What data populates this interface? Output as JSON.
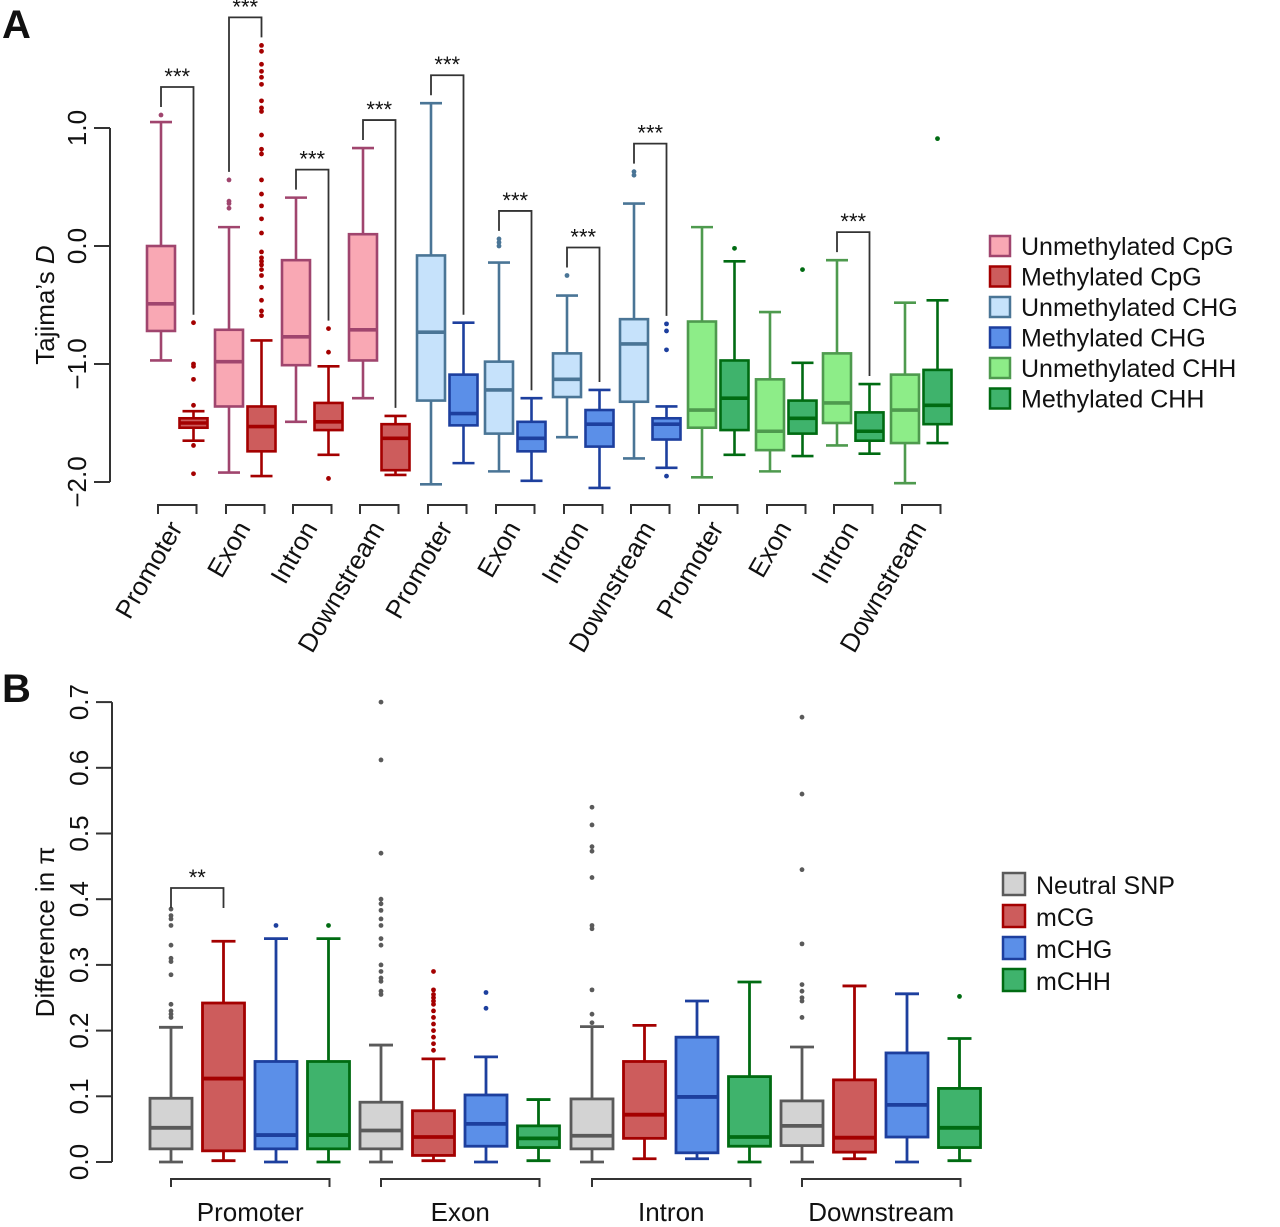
{
  "chart_data": [
    {
      "panel": "A",
      "type": "boxplot",
      "ylabel": "Tajima's D",
      "ylabel_parts": [
        "Tajima’s ",
        "D"
      ],
      "ylim": [
        -2.0,
        1.2
      ],
      "yticks": [
        -2.0,
        -1.0,
        0.0,
        1.0
      ],
      "ytick_labels": [
        "−2.0",
        "−1.0",
        "0.0",
        "1.0"
      ],
      "grid": false,
      "legend_position": "right",
      "categories": [
        "Promoter",
        "Exon",
        "Intron",
        "Downstream",
        "Promoter",
        "Exon",
        "Intron",
        "Downstream",
        "Promoter",
        "Exon",
        "Intron",
        "Downstream"
      ],
      "groups": [
        "CpG",
        "CpG",
        "CpG",
        "CpG",
        "CHG",
        "CHG",
        "CHG",
        "CHG",
        "CHH",
        "CHH",
        "CHH",
        "CHH"
      ],
      "series": [
        {
          "name": "Unmethylated CpG",
          "fill": "#f9a8b4",
          "stroke": "#a0456e",
          "boxes": [
            {
              "whislo": -0.97,
              "q1": -0.72,
              "med": -0.49,
              "q3": 0.0,
              "whishi": 1.05,
              "fliers": [
                1.11
              ]
            },
            {
              "whislo": -1.92,
              "q1": -1.36,
              "med": -0.98,
              "q3": -0.71,
              "whishi": 0.16,
              "fliers": [
                0.32,
                0.36,
                0.38,
                0.56
              ]
            },
            {
              "whislo": -1.49,
              "q1": -1.01,
              "med": -0.77,
              "q3": -0.12,
              "whishi": 0.41,
              "fliers": []
            },
            {
              "whislo": -1.29,
              "q1": -0.97,
              "med": -0.71,
              "q3": 0.1,
              "whishi": 0.83,
              "fliers": []
            }
          ]
        },
        {
          "name": "Methylated CpG",
          "fill": "#cd5c5c",
          "stroke": "#a40000",
          "boxes": [
            {
              "whislo": -1.65,
              "q1": -1.54,
              "med": -1.5,
              "q3": -1.46,
              "whishi": -1.4,
              "fliers": [
                -0.65,
                -1.0,
                -1.02,
                -1.13,
                -1.35,
                -1.69,
                -1.93
              ]
            },
            {
              "whislo": -1.95,
              "q1": -1.74,
              "med": -1.53,
              "q3": -1.36,
              "whishi": -0.8,
              "fliers": [
                1.7,
                1.65,
                1.54,
                1.48,
                1.43,
                1.37,
                1.23,
                1.17,
                1.14,
                0.94,
                0.82,
                0.78,
                0.56,
                0.44,
                0.34,
                0.23,
                0.11,
                -0.05,
                -0.1,
                -0.13,
                -0.16,
                -0.2,
                -0.25,
                -0.35,
                -0.46,
                -0.55,
                -0.59
              ]
            },
            {
              "whislo": -1.77,
              "q1": -1.56,
              "med": -1.49,
              "q3": -1.33,
              "whishi": -1.02,
              "fliers": [
                -0.7,
                -0.9,
                -1.97
              ]
            },
            {
              "whislo": -1.94,
              "q1": -1.9,
              "med": -1.63,
              "q3": -1.51,
              "whishi": -1.44,
              "fliers": []
            }
          ]
        },
        {
          "name": "Unmethylated CHG",
          "fill": "#c6e2fb",
          "stroke": "#4a7596",
          "boxes": [
            {
              "whislo": -2.02,
              "q1": -1.31,
              "med": -0.73,
              "q3": -0.08,
              "whishi": 1.21,
              "fliers": []
            },
            {
              "whislo": -1.91,
              "q1": -1.59,
              "med": -1.22,
              "q3": -0.98,
              "whishi": -0.14,
              "fliers": [
                0.0,
                0.03,
                0.06
              ]
            },
            {
              "whislo": -1.62,
              "q1": -1.28,
              "med": -1.13,
              "q3": -0.91,
              "whishi": -0.42,
              "fliers": [
                -0.25
              ]
            },
            {
              "whislo": -1.8,
              "q1": -1.32,
              "med": -0.83,
              "q3": -0.62,
              "whishi": 0.36,
              "fliers": [
                0.6,
                0.63
              ]
            }
          ]
        },
        {
          "name": "Methylated CHG",
          "fill": "#5b8fe8",
          "stroke": "#1d3f9e",
          "boxes": [
            {
              "whislo": -1.84,
              "q1": -1.52,
              "med": -1.42,
              "q3": -1.09,
              "whishi": -0.65,
              "fliers": []
            },
            {
              "whislo": -1.99,
              "q1": -1.74,
              "med": -1.63,
              "q3": -1.49,
              "whishi": -1.29,
              "fliers": []
            },
            {
              "whislo": -2.05,
              "q1": -1.7,
              "med": -1.51,
              "q3": -1.39,
              "whishi": -1.22,
              "fliers": []
            },
            {
              "whislo": -1.88,
              "q1": -1.64,
              "med": -1.51,
              "q3": -1.46,
              "whishi": -1.36,
              "fliers": [
                -0.66,
                -0.72,
                -0.88,
                -1.95
              ]
            }
          ]
        },
        {
          "name": "Unmethylated CHH",
          "fill": "#8ded88",
          "stroke": "#4e9a4e",
          "boxes": [
            {
              "whislo": -1.96,
              "q1": -1.54,
              "med": -1.39,
              "q3": -0.64,
              "whishi": 0.16,
              "fliers": []
            },
            {
              "whislo": -1.91,
              "q1": -1.73,
              "med": -1.57,
              "q3": -1.13,
              "whishi": -0.56,
              "fliers": []
            },
            {
              "whislo": -1.69,
              "q1": -1.5,
              "med": -1.33,
              "q3": -0.91,
              "whishi": -0.12,
              "fliers": []
            },
            {
              "whislo": -2.01,
              "q1": -1.67,
              "med": -1.39,
              "q3": -1.09,
              "whishi": -0.48,
              "fliers": []
            }
          ]
        },
        {
          "name": "Methylated CHH",
          "fill": "#3fb36c",
          "stroke": "#006b12",
          "boxes": [
            {
              "whislo": -1.77,
              "q1": -1.56,
              "med": -1.29,
              "q3": -0.97,
              "whishi": -0.13,
              "fliers": [
                -0.02
              ]
            },
            {
              "whislo": -1.78,
              "q1": -1.59,
              "med": -1.46,
              "q3": -1.31,
              "whishi": -0.99,
              "fliers": [
                -0.2
              ]
            },
            {
              "whislo": -1.76,
              "q1": -1.65,
              "med": -1.57,
              "q3": -1.41,
              "whishi": -1.17,
              "fliers": []
            },
            {
              "whislo": -1.67,
              "q1": -1.51,
              "med": -1.35,
              "q3": -1.05,
              "whishi": -0.46,
              "fliers": [
                0.91
              ]
            }
          ]
        }
      ],
      "significance": [
        {
          "category_index": 0,
          "label": "***"
        },
        {
          "category_index": 1,
          "label": "***"
        },
        {
          "category_index": 2,
          "label": "***"
        },
        {
          "category_index": 3,
          "label": "***"
        },
        {
          "category_index": 4,
          "label": "***"
        },
        {
          "category_index": 5,
          "label": "***"
        },
        {
          "category_index": 6,
          "label": "***"
        },
        {
          "category_index": 7,
          "label": "***"
        },
        {
          "category_index": 10,
          "label": "***"
        }
      ]
    },
    {
      "panel": "B",
      "type": "boxplot",
      "ylabel": "Difference in π",
      "ylim": [
        0.0,
        0.7
      ],
      "yticks": [
        0.0,
        0.1,
        0.2,
        0.3,
        0.4,
        0.5,
        0.6,
        0.7
      ],
      "ytick_labels": [
        "0.0",
        "0.1",
        "0.2",
        "0.3",
        "0.4",
        "0.5",
        "0.6",
        "0.7"
      ],
      "grid": false,
      "legend_position": "right",
      "categories": [
        "Promoter",
        "Exon",
        "Intron",
        "Downstream"
      ],
      "series": [
        {
          "name": "Neutral SNP",
          "fill": "#d3d3d3",
          "stroke": "#5a5a5a",
          "boxes": [
            {
              "whislo": 0.0,
              "q1": 0.02,
              "med": 0.052,
              "q3": 0.097,
              "whishi": 0.205,
              "fliers": [
                0.22,
                0.225,
                0.23,
                0.24,
                0.285,
                0.305,
                0.31,
                0.33,
                0.36,
                0.37,
                0.375,
                0.385
              ]
            },
            {
              "whislo": 0.0,
              "q1": 0.02,
              "med": 0.048,
              "q3": 0.091,
              "whishi": 0.178,
              "fliers": [
                0.7,
                0.612,
                0.47,
                0.4,
                0.393,
                0.383,
                0.37,
                0.36,
                0.34,
                0.33,
                0.3,
                0.29,
                0.28,
                0.275,
                0.26,
                0.255
              ]
            },
            {
              "whislo": 0.0,
              "q1": 0.02,
              "med": 0.04,
              "q3": 0.096,
              "whishi": 0.206,
              "fliers": [
                0.54,
                0.513,
                0.48,
                0.473,
                0.433,
                0.36,
                0.355,
                0.262,
                0.225,
                0.212
              ]
            },
            {
              "whislo": 0.0,
              "q1": 0.025,
              "med": 0.055,
              "q3": 0.093,
              "whishi": 0.175,
              "fliers": [
                0.677,
                0.56,
                0.445,
                0.332,
                0.27,
                0.26,
                0.25,
                0.245,
                0.22
              ]
            }
          ]
        },
        {
          "name": "mCG",
          "fill": "#cd5c5c",
          "stroke": "#a40000",
          "boxes": [
            {
              "whislo": 0.002,
              "q1": 0.017,
              "med": 0.127,
              "q3": 0.242,
              "whishi": 0.336,
              "fliers": []
            },
            {
              "whislo": 0.002,
              "q1": 0.01,
              "med": 0.038,
              "q3": 0.078,
              "whishi": 0.157,
              "fliers": [
                0.29,
                0.262,
                0.255,
                0.25,
                0.245,
                0.24,
                0.23,
                0.22,
                0.21,
                0.2,
                0.19,
                0.18,
                0.17
              ]
            },
            {
              "whislo": 0.005,
              "q1": 0.036,
              "med": 0.072,
              "q3": 0.153,
              "whishi": 0.208,
              "fliers": []
            },
            {
              "whislo": 0.005,
              "q1": 0.015,
              "med": 0.037,
              "q3": 0.125,
              "whishi": 0.268,
              "fliers": []
            }
          ]
        },
        {
          "name": "mCHG",
          "fill": "#5b8fe8",
          "stroke": "#1d3f9e",
          "boxes": [
            {
              "whislo": 0.0,
              "q1": 0.02,
              "med": 0.041,
              "q3": 0.153,
              "whishi": 0.34,
              "fliers": [
                0.36
              ]
            },
            {
              "whislo": 0.0,
              "q1": 0.024,
              "med": 0.058,
              "q3": 0.102,
              "whishi": 0.16,
              "fliers": [
                0.258,
                0.234
              ]
            },
            {
              "whislo": 0.005,
              "q1": 0.014,
              "med": 0.099,
              "q3": 0.19,
              "whishi": 0.245,
              "fliers": []
            },
            {
              "whislo": 0.0,
              "q1": 0.038,
              "med": 0.087,
              "q3": 0.166,
              "whishi": 0.256,
              "fliers": []
            }
          ]
        },
        {
          "name": "mCHH",
          "fill": "#3fb36c",
          "stroke": "#006b12",
          "boxes": [
            {
              "whislo": 0.0,
              "q1": 0.02,
              "med": 0.041,
              "q3": 0.153,
              "whishi": 0.34,
              "fliers": [
                0.36
              ]
            },
            {
              "whislo": 0.002,
              "q1": 0.022,
              "med": 0.036,
              "q3": 0.055,
              "whishi": 0.095,
              "fliers": []
            },
            {
              "whislo": 0.0,
              "q1": 0.024,
              "med": 0.038,
              "q3": 0.13,
              "whishi": 0.274,
              "fliers": []
            },
            {
              "whislo": 0.002,
              "q1": 0.022,
              "med": 0.052,
              "q3": 0.112,
              "whishi": 0.188,
              "fliers": [
                0.252
              ]
            }
          ]
        }
      ],
      "significance": [
        {
          "category_index": 0,
          "from_series": 0,
          "to_series": 1,
          "label": "**"
        }
      ]
    }
  ]
}
